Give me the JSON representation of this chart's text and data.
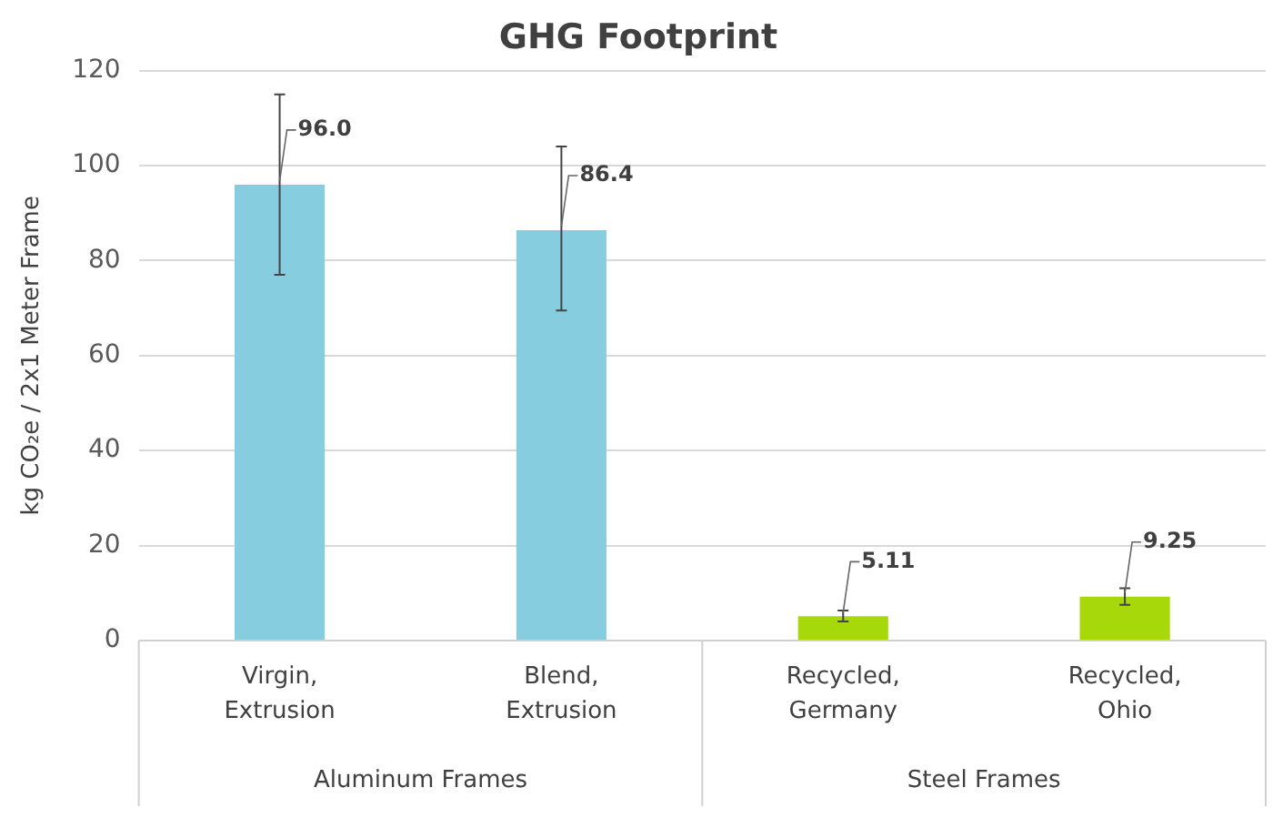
{
  "chart_data": {
    "type": "bar",
    "title": "GHG Footprint",
    "ylabel": "kg CO₂e / 2x1 Meter Frame",
    "categories": [
      "Virgin, Extrusion",
      "Blend, Extrusion",
      "Recycled, Germany",
      "Recycled, Ohio"
    ],
    "values": [
      96.0,
      86.4,
      5.11,
      9.25
    ],
    "colors": [
      "#87cde0",
      "#87cde0",
      "#a6d80a",
      "#a6d80a"
    ],
    "value_labels": [
      "96.0",
      "86.4",
      "5.11",
      "9.25"
    ],
    "errors": [
      [
        77,
        115
      ],
      [
        69.5,
        104
      ],
      [
        4,
        6.3
      ],
      [
        7.5,
        11
      ]
    ],
    "ylim": [
      0,
      120
    ],
    "yticks": [
      0,
      20,
      40,
      60,
      80,
      100,
      120
    ],
    "grid": "y",
    "annotations": [
      "Aluminum Frames",
      "Steel Frames"
    ]
  }
}
